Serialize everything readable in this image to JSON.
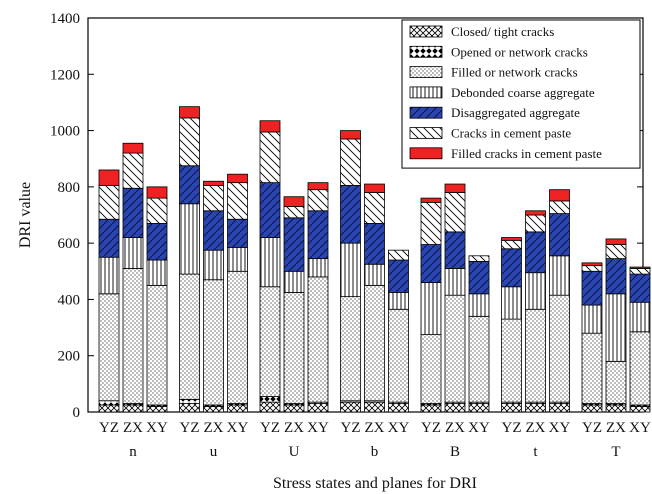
{
  "chart_data": {
    "type": "bar",
    "stacked": true,
    "title": "",
    "xlabel": "Stress states and planes for DRI",
    "ylabel": "DRI value",
    "ylim": [
      0,
      1400
    ],
    "yticks": [
      0,
      200,
      400,
      600,
      800,
      1000,
      1200,
      1400
    ],
    "groups": [
      {
        "label": "n",
        "bars": [
          "YZ",
          "ZX",
          "XY"
        ]
      },
      {
        "label": "u",
        "bars": [
          "YZ",
          "ZX",
          "XY"
        ]
      },
      {
        "label": "U",
        "bars": [
          "YZ",
          "ZX",
          "XY"
        ]
      },
      {
        "label": "b",
        "bars": [
          "YZ",
          "ZX",
          "XY"
        ]
      },
      {
        "label": "B",
        "bars": [
          "YZ",
          "ZX",
          "XY"
        ]
      },
      {
        "label": "t",
        "bars": [
          "YZ",
          "ZX",
          "XY"
        ]
      },
      {
        "label": "T",
        "bars": [
          "YZ",
          "ZX",
          "XY"
        ]
      }
    ],
    "legend_position": "top-right",
    "series": [
      {
        "name": "Closed/ tight cracks",
        "pattern": "crosshatch",
        "values": [
          25,
          25,
          20,
          30,
          20,
          25,
          35,
          25,
          30,
          35,
          35,
          30,
          25,
          30,
          30,
          30,
          30,
          30,
          25,
          25,
          20
        ]
      },
      {
        "name": "Opened or network cracks",
        "pattern": "diamonds",
        "values": [
          15,
          5,
          5,
          15,
          5,
          5,
          20,
          5,
          5,
          5,
          5,
          5,
          5,
          5,
          5,
          5,
          5,
          5,
          5,
          5,
          5
        ]
      },
      {
        "name": "Filled or network cracks",
        "pattern": "dots",
        "values": [
          380,
          480,
          425,
          445,
          445,
          470,
          390,
          395,
          445,
          370,
          410,
          330,
          245,
          380,
          305,
          295,
          330,
          380,
          250,
          150,
          260
        ]
      },
      {
        "name": "Debonded coarse aggregate",
        "pattern": "vlines",
        "values": [
          130,
          110,
          90,
          250,
          105,
          85,
          175,
          75,
          65,
          190,
          75,
          60,
          185,
          95,
          80,
          115,
          130,
          140,
          100,
          240,
          105
        ]
      },
      {
        "name": "Disaggregated aggregate",
        "pattern": "blue",
        "values": [
          135,
          175,
          130,
          135,
          140,
          100,
          195,
          190,
          170,
          205,
          145,
          115,
          135,
          130,
          115,
          135,
          145,
          150,
          120,
          125,
          100
        ]
      },
      {
        "name": "Cracks in cement paste",
        "pattern": "diag",
        "values": [
          120,
          125,
          90,
          170,
          90,
          130,
          180,
          40,
          75,
          165,
          110,
          35,
          150,
          140,
          20,
          30,
          60,
          45,
          20,
          50,
          20
        ]
      },
      {
        "name": "Filled cracks in cement paste",
        "pattern": "red",
        "values": [
          55,
          35,
          40,
          40,
          15,
          30,
          40,
          35,
          25,
          30,
          30,
          0,
          15,
          30,
          0,
          10,
          15,
          40,
          10,
          20,
          5
        ]
      }
    ]
  }
}
